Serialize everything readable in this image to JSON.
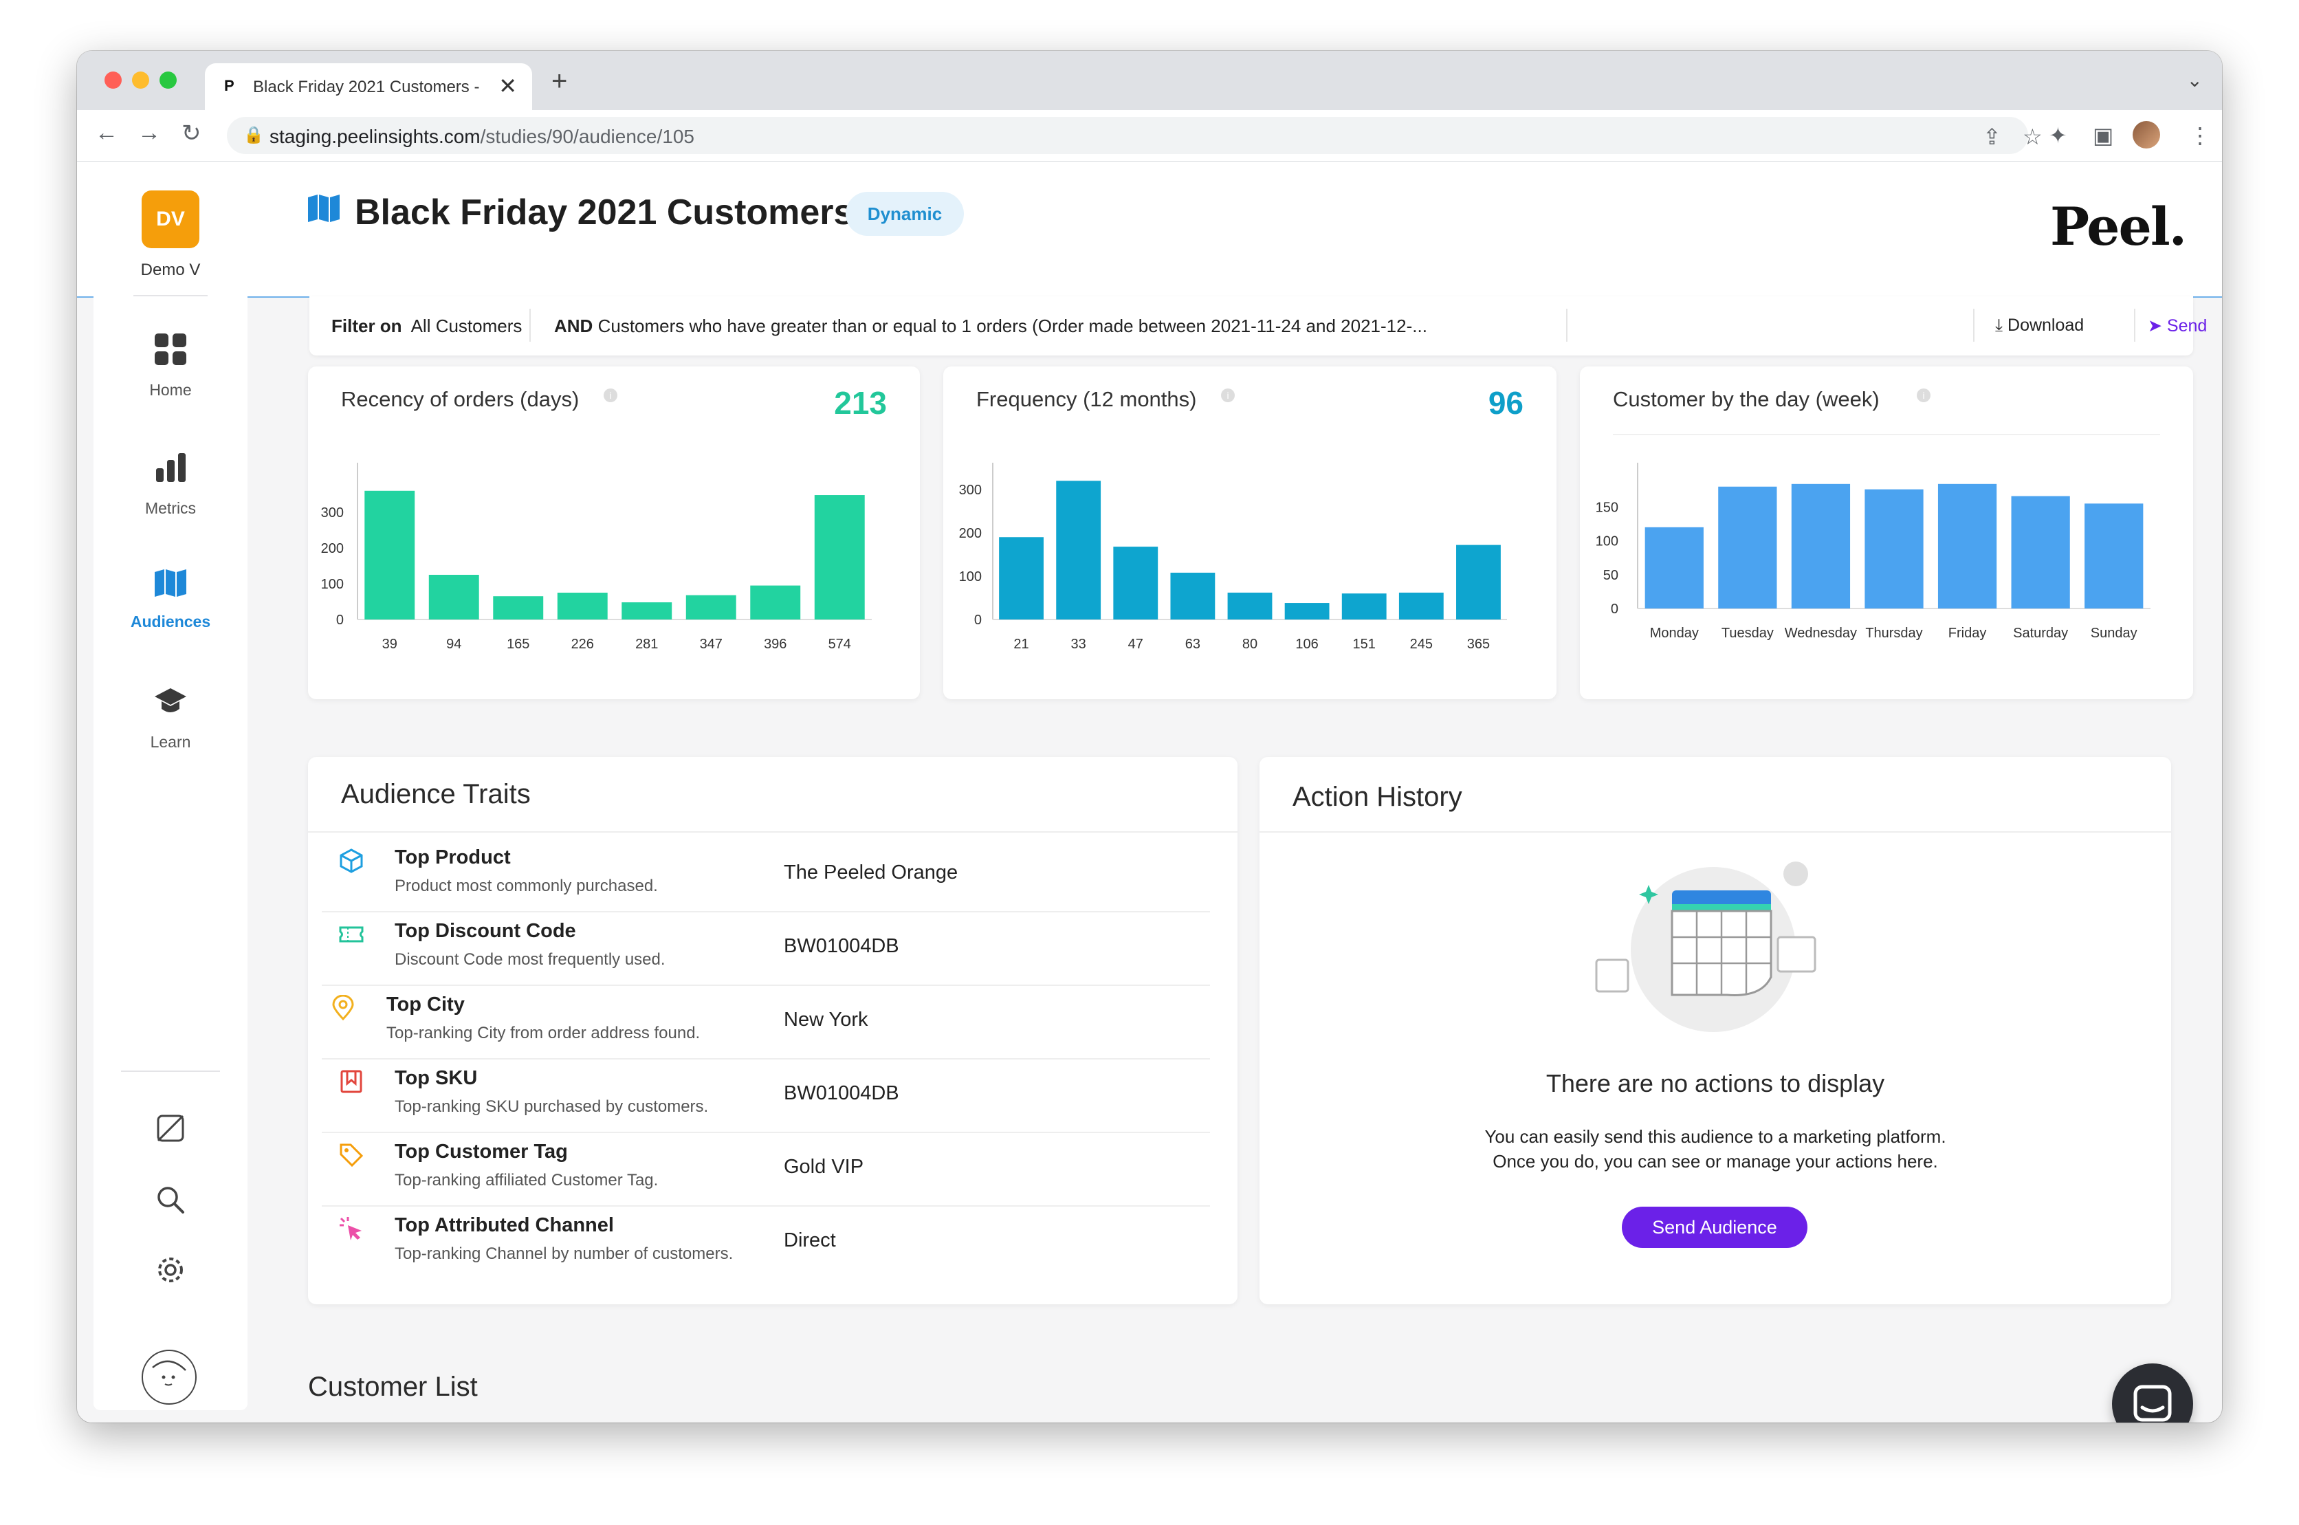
{
  "browser": {
    "tab_favicon": "P",
    "tab_title": "Black Friday 2021 Customers -",
    "tab_close": "✕",
    "new_tab": "+",
    "url_domain": "staging.peelinsights.com",
    "url_path": "/studies/90/audience/105",
    "traffic_lights": [
      "#ff5f57",
      "#febc2e",
      "#28c840"
    ]
  },
  "sidebar": {
    "avatar_initials": "DV",
    "user_name": "Demo V",
    "items": [
      {
        "label": "Home",
        "icon": "home-grid-icon"
      },
      {
        "label": "Metrics",
        "icon": "bar-chart-icon"
      },
      {
        "label": "Audiences",
        "icon": "map-icon",
        "active": true
      },
      {
        "label": "Learn",
        "icon": "graduation-cap-icon"
      }
    ]
  },
  "header": {
    "title": "Black Friday 2021 Customers",
    "badge": "Dynamic",
    "logo": "Peel."
  },
  "filter": {
    "prefix": "Filter on",
    "base": "All Customers",
    "and_label": "AND",
    "condition": "Customers who have greater than or equal to 1 orders (Order made between 2021-11-24 and 2021-12-...",
    "download_label": "Download",
    "send_label": "Send"
  },
  "cards": {
    "recency": {
      "title": "Recency of orders (days)",
      "metric": "213"
    },
    "frequency": {
      "title": "Frequency (12 months)",
      "metric": "96"
    },
    "weekday": {
      "title": "Customer by the day (week)"
    }
  },
  "chart_data": [
    {
      "type": "bar",
      "title": "Recency of orders (days)",
      "categories": [
        "39",
        "94",
        "165",
        "226",
        "281",
        "347",
        "396",
        "574"
      ],
      "values": [
        360,
        125,
        65,
        75,
        48,
        68,
        95,
        348
      ],
      "yticks": [
        0,
        100,
        200,
        300
      ],
      "ylim": [
        0,
        400
      ],
      "color": "#22d3a0"
    },
    {
      "type": "bar",
      "title": "Frequency (12 months)",
      "categories": [
        "21",
        "33",
        "47",
        "63",
        "80",
        "106",
        "151",
        "245",
        "365"
      ],
      "values": [
        190,
        320,
        168,
        108,
        62,
        38,
        60,
        62,
        172
      ],
      "yticks": [
        0,
        100,
        200,
        300
      ],
      "ylim": [
        0,
        330
      ],
      "color": "#0ea5cf"
    },
    {
      "type": "bar",
      "title": "Customer by the day (week)",
      "categories": [
        "Monday",
        "Tuesday",
        "Wednesday",
        "Thursday",
        "Friday",
        "Saturday",
        "Sunday"
      ],
      "values": [
        120,
        180,
        184,
        176,
        184,
        166,
        155
      ],
      "yticks": [
        0,
        50,
        100,
        150
      ],
      "ylim": [
        0,
        195
      ],
      "color": "#4ba3f0"
    }
  ],
  "traits": {
    "title": "Audience Traits",
    "rows": [
      {
        "name": "Top Product",
        "desc": "Product most commonly purchased.",
        "value": "The Peeled Orange",
        "icon": "cube-icon",
        "color": "#1e9fe0"
      },
      {
        "name": "Top Discount Code",
        "desc": "Discount Code most frequently used.",
        "value": "BW01004DB",
        "icon": "ticket-icon",
        "color": "#22c39a"
      },
      {
        "name": "Top City",
        "desc": "Top-ranking City from order address found.",
        "value": "New York",
        "icon": "location-pin-icon",
        "color": "#f2b01e"
      },
      {
        "name": "Top SKU",
        "desc": "Top-ranking SKU purchased by customers.",
        "value": "BW01004DB",
        "icon": "bookmark-icon",
        "color": "#e2463d"
      },
      {
        "name": "Top Customer Tag",
        "desc": "Top-ranking affiliated Customer Tag.",
        "value": "Gold VIP",
        "icon": "tag-icon",
        "color": "#f59e0b"
      },
      {
        "name": "Top Attributed Channel",
        "desc": "Top-ranking Channel by number of customers.",
        "value": "Direct",
        "icon": "cursor-click-icon",
        "color": "#ec4fa8"
      }
    ]
  },
  "action_history": {
    "title": "Action History",
    "empty_title": "There are no actions to display",
    "empty_line1": "You can easily send this audience to a marketing platform.",
    "empty_line2": "Once you do, you can see or manage your actions here.",
    "button": "Send Audience"
  },
  "customer_list": {
    "title": "Customer List"
  }
}
